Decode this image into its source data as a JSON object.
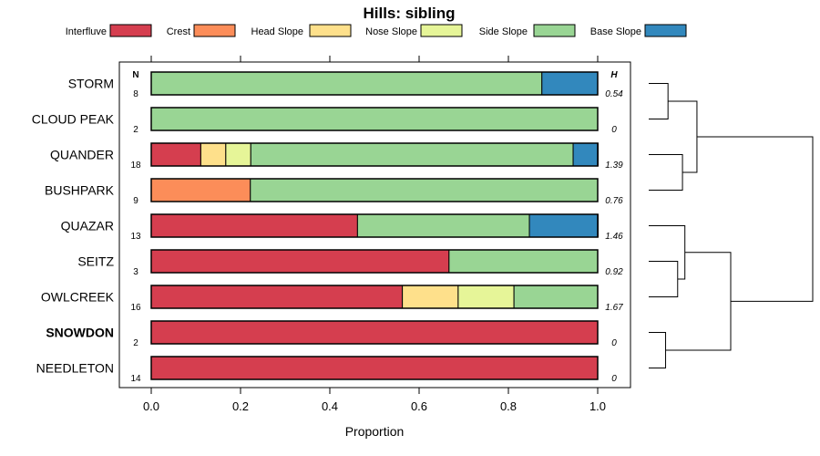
{
  "chart_data": {
    "type": "bar",
    "orientation": "horizontal",
    "stacked": true,
    "title": "Hills: sibling",
    "xlabel": "Proportion",
    "ylabel": "",
    "xlim": [
      0,
      1
    ],
    "xticks": [
      0,
      0.2,
      0.4,
      0.6,
      0.8,
      1
    ],
    "xtick_labels": [
      "0.0",
      "0.2",
      "0.4",
      "0.6",
      "0.8",
      "1.0"
    ],
    "n_header": "N",
    "h_header": "H",
    "legend_position": "top",
    "legend": [
      {
        "name": "Interfluve",
        "color": "#D53E4F"
      },
      {
        "name": "Crest",
        "color": "#FC8D59"
      },
      {
        "name": "Head Slope",
        "color": "#FEE08B"
      },
      {
        "name": "Nose Slope",
        "color": "#E6F598"
      },
      {
        "name": "Side Slope",
        "color": "#99D594"
      },
      {
        "name": "Base Slope",
        "color": "#3288BD"
      }
    ],
    "categories": [
      "STORM",
      "CLOUD PEAK",
      "QUANDER",
      "BUSHPARK",
      "QUAZAR",
      "SEITZ",
      "OWLCREEK",
      "SNOWDON",
      "NEEDLETON"
    ],
    "bold_category": "SNOWDON",
    "n_values": [
      8,
      2,
      18,
      9,
      13,
      3,
      16,
      2,
      14
    ],
    "h_values": [
      "0.54",
      "0",
      "1.39",
      "0.76",
      "1.46",
      "0.92",
      "1.67",
      "0",
      "0"
    ],
    "series": [
      {
        "name": "Interfluve",
        "values": [
          0,
          0,
          0.111,
          0,
          0.462,
          0.667,
          0.5625,
          1,
          1
        ]
      },
      {
        "name": "Crest",
        "values": [
          0,
          0,
          0,
          0.222,
          0,
          0,
          0,
          0,
          0
        ]
      },
      {
        "name": "Head Slope",
        "values": [
          0,
          0,
          0.056,
          0,
          0,
          0,
          0.125,
          0,
          0
        ]
      },
      {
        "name": "Nose Slope",
        "values": [
          0,
          0,
          0.056,
          0,
          0,
          0,
          0.125,
          0,
          0
        ]
      },
      {
        "name": "Side Slope",
        "values": [
          0.875,
          1,
          0.722,
          0.778,
          0.385,
          0.333,
          0.1875,
          0,
          0
        ]
      },
      {
        "name": "Base Slope",
        "values": [
          0.125,
          0,
          0.056,
          0,
          0.154,
          0,
          0,
          0,
          0
        ]
      }
    ],
    "dendrogram": {
      "leaf_order": [
        "STORM",
        "CLOUD PEAK",
        "QUANDER",
        "BUSHPARK",
        "QUAZAR",
        "SEITZ",
        "OWLCREEK",
        "SNOWDON",
        "NEEDLETON"
      ],
      "merges": [
        {
          "left": "STORM",
          "right": "CLOUD PEAK",
          "height": 0.04
        },
        {
          "left": "QUANDER",
          "right": "BUSHPARK",
          "height": 0.07
        },
        {
          "left": "STORM+CLOUD PEAK",
          "right": "QUANDER+BUSHPARK",
          "height": 0.1
        },
        {
          "left": "SEITZ",
          "right": "OWLCREEK",
          "height": 0.06
        },
        {
          "left": "QUAZAR",
          "right": "SEITZ+OWLCREEK",
          "height": 0.075
        },
        {
          "left": "SNOWDON",
          "right": "NEEDLETON",
          "height": 0.035
        },
        {
          "left": "QUAZAR+SEITZ+OWLCREEK",
          "right": "SNOWDON+NEEDLETON",
          "height": 0.17
        },
        {
          "left": "STORM+CLOUD PEAK+QUANDER+BUSHPARK",
          "right": "QUAZAR+SEITZ+OWLCREEK+SNOWDON+NEEDLETON",
          "height": 0.34
        }
      ]
    }
  }
}
